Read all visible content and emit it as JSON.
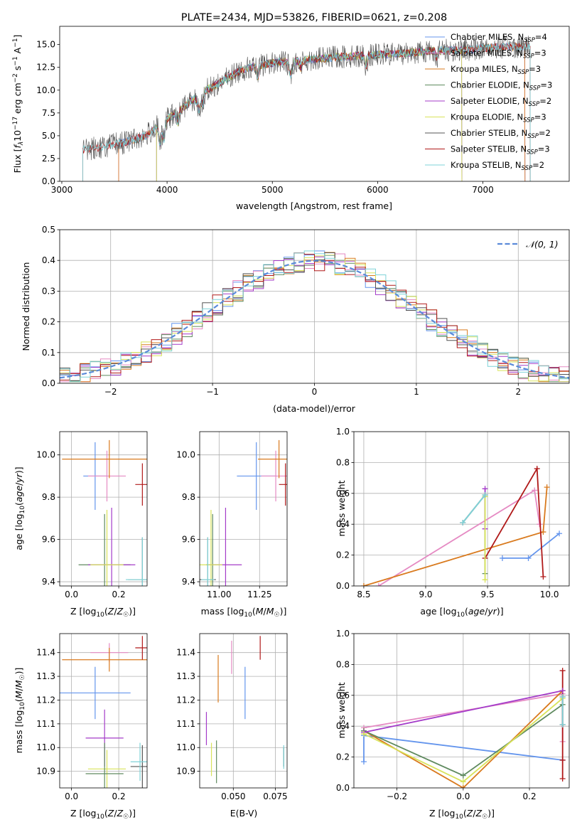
{
  "chart_data": [
    {
      "id": "spectrum",
      "type": "line",
      "title": "PLATE=2434, MJD=53826, FIBERID=0621, z=0.208",
      "xlabel": "wavelength [Angstrom, rest frame]",
      "ylabel": "Flux [fλ10⁻¹⁷ erg cm⁻² s⁻¹ A⁻¹]",
      "xlim": [
        2980,
        7820
      ],
      "ylim": [
        0,
        17
      ],
      "xticks": [
        3000,
        4000,
        5000,
        6000,
        7000
      ],
      "yticks": [
        0.0,
        2.5,
        5.0,
        7.5,
        10.0,
        12.5,
        15.0
      ],
      "grid": false,
      "legend_placement": "upper-right",
      "series": [
        {
          "name": "Chabrier MILES, N_SSP=4",
          "color": "#6495ED",
          "x_range": [
            3540,
            7400
          ]
        },
        {
          "name": "Salpeter MILES, N_SSP=3",
          "color": "#e58ac3",
          "x_range": [
            3540,
            7400
          ]
        },
        {
          "name": "Kroupa MILES, N_SSP=3",
          "color": "#d97a1e",
          "x_range": [
            3540,
            7400
          ]
        },
        {
          "name": "Chabrier ELODIE, N_SSP=3",
          "color": "#5f8a5f",
          "x_range": [
            3900,
            6800
          ]
        },
        {
          "name": "Salpeter ELODIE, N_SSP=2",
          "color": "#a43bc9",
          "x_range": [
            3900,
            6800
          ]
        },
        {
          "name": "Kroupa ELODIE, N_SSP=3",
          "color": "#d8e35a",
          "x_range": [
            3900,
            6800
          ]
        },
        {
          "name": "Chabrier STELIB, N_SSP=2",
          "color": "#555555",
          "x_range": [
            3200,
            7450
          ]
        },
        {
          "name": "Salpeter STELIB, N_SSP=3",
          "color": "#b01919",
          "x_range": [
            3200,
            7450
          ]
        },
        {
          "name": "Kroupa STELIB, N_SSP=2",
          "color": "#7fd3d8",
          "x_range": [
            3200,
            7450
          ]
        }
      ],
      "continuum": {
        "x": [
          3200,
          3400,
          3600,
          3800,
          3950,
          4100,
          4300,
          4500,
          4700,
          5000,
          5300,
          5600,
          5900,
          6200,
          6500,
          6800,
          7100,
          7400
        ],
        "y": [
          3.5,
          3.8,
          4.3,
          5.0,
          6.5,
          7.6,
          9.5,
          10.8,
          12.2,
          13.0,
          13.3,
          13.6,
          13.8,
          14.0,
          14.3,
          14.4,
          14.7,
          14.8
        ]
      },
      "legend_entries": [
        {
          "prefix": "Chabrier MILES, N",
          "sub": "SSP",
          "suffix": "=4"
        },
        {
          "prefix": "Salpeter MILES, N",
          "sub": "SSP",
          "suffix": "=3"
        },
        {
          "prefix": "Kroupa MILES, N",
          "sub": "SSP",
          "suffix": "=3"
        },
        {
          "prefix": "Chabrier ELODIE, N",
          "sub": "SSP",
          "suffix": "=3"
        },
        {
          "prefix": "Salpeter ELODIE, N",
          "sub": "SSP",
          "suffix": "=2"
        },
        {
          "prefix": "Kroupa ELODIE, N",
          "sub": "SSP",
          "suffix": "=3"
        },
        {
          "prefix": "Chabrier STELIB, N",
          "sub": "SSP",
          "suffix": "=2"
        },
        {
          "prefix": "Salpeter STELIB, N",
          "sub": "SSP",
          "suffix": "=3"
        },
        {
          "prefix": "Kroupa STELIB, N",
          "sub": "SSP",
          "suffix": "=2"
        }
      ]
    },
    {
      "id": "residuals",
      "type": "histogram",
      "xlabel": "(data-model)/error",
      "ylabel": "Normed distribution",
      "xlim": [
        -2.5,
        2.5
      ],
      "ylim": [
        0,
        0.5
      ],
      "xticks": [
        -2,
        -1,
        0,
        1,
        2
      ],
      "xtick_labels": [
        "−2",
        "−1",
        "0",
        "1",
        "2"
      ],
      "yticks": [
        0.0,
        0.1,
        0.2,
        0.3,
        0.4,
        0.5
      ],
      "grid": true,
      "legend_placement": "upper-right",
      "reference": {
        "name": "N(0,1)",
        "label": "𝒩(0, 1)",
        "color": "#5b8bd9",
        "style": "dashed"
      },
      "bin_edges_range": [
        -2.5,
        2.5
      ],
      "bin_count": 50
    },
    {
      "id": "age-vs-Z",
      "type": "errorbar",
      "xlabel": "Z [log₁₀(Z/Z☉)]",
      "ylabel": "age  [log₁₀(age/yr)]",
      "xlim": [
        -0.05,
        0.32
      ],
      "ylim": [
        9.38,
        10.11
      ],
      "xticks": [
        0.0,
        0.2
      ],
      "yticks": [
        9.4,
        9.6,
        9.8,
        10.0
      ],
      "grid": true,
      "points": [
        {
          "color": "#6495ED",
          "x": 0.1,
          "xerr": 0.05,
          "y": 9.9,
          "yerr": 0.16
        },
        {
          "color": "#e58ac3",
          "x": 0.15,
          "xerr": 0.08,
          "y": 9.9,
          "yerr": 0.12
        },
        {
          "color": "#d97a1e",
          "x": 0.16,
          "xerr": 0.2,
          "y": 9.98,
          "yerr": 0.09
        },
        {
          "color": "#b01919",
          "x": 0.3,
          "xerr": 0.03,
          "y": 9.86,
          "yerr": 0.1
        },
        {
          "color": "#5f8a5f",
          "x": 0.14,
          "xerr": 0.11,
          "y": 9.48,
          "yerr": 0.24
        },
        {
          "color": "#a43bc9",
          "x": 0.17,
          "xerr": 0.1,
          "y": 9.48,
          "yerr": 0.27
        },
        {
          "color": "#d8e35a",
          "x": 0.15,
          "xerr": 0.07,
          "y": 9.48,
          "yerr": 0.26
        },
        {
          "color": "#555555",
          "x": 0.3,
          "xerr": 0.06,
          "y": 9.41,
          "yerr": 0.2
        },
        {
          "color": "#7fd3d8",
          "x": 0.3,
          "xerr": 0.07,
          "y": 9.41,
          "yerr": 0.2
        }
      ]
    },
    {
      "id": "age-vs-mass",
      "type": "errorbar",
      "xlabel": "mass [log₁₀(M/M☉)]",
      "xlim": [
        10.88,
        11.42
      ],
      "ylim": [
        9.38,
        10.11
      ],
      "xticks": [
        11.0,
        11.25
      ],
      "yticks": [
        9.4,
        9.6,
        9.8,
        10.0
      ],
      "grid": true,
      "points": [
        {
          "color": "#6495ED",
          "x": 11.23,
          "xerr": 0.12,
          "y": 9.9,
          "yerr": 0.16
        },
        {
          "color": "#e58ac3",
          "x": 11.35,
          "xerr": 0.09,
          "y": 9.9,
          "yerr": 0.12
        },
        {
          "color": "#d97a1e",
          "x": 11.37,
          "xerr": 0.13,
          "y": 9.98,
          "yerr": 0.09
        },
        {
          "color": "#b01919",
          "x": 11.41,
          "xerr": 0.04,
          "y": 9.86,
          "yerr": 0.1
        },
        {
          "color": "#5f8a5f",
          "x": 10.96,
          "xerr": 0.04,
          "y": 9.48,
          "yerr": 0.24
        },
        {
          "color": "#a43bc9",
          "x": 11.04,
          "xerr": 0.1,
          "y": 9.48,
          "yerr": 0.27
        },
        {
          "color": "#d8e35a",
          "x": 10.95,
          "xerr": 0.07,
          "y": 9.48,
          "yerr": 0.26
        },
        {
          "color": "#555555",
          "x": 10.93,
          "xerr": 0.05,
          "y": 9.41,
          "yerr": 0.2
        },
        {
          "color": "#7fd3d8",
          "x": 10.93,
          "xerr": 0.04,
          "y": 9.41,
          "yerr": 0.2
        }
      ]
    },
    {
      "id": "mass-weight-vs-age",
      "type": "line",
      "xlabel": "age  [log₁₀(age/yr)]",
      "ylabel": "mass weight",
      "xlim": [
        8.42,
        10.16
      ],
      "ylim": [
        0,
        1.0
      ],
      "xticks": [
        8.5,
        9.0,
        9.5,
        10.0
      ],
      "yticks": [
        0.0,
        0.2,
        0.4,
        0.6,
        0.8,
        1.0
      ],
      "grid": true,
      "series": [
        {
          "color": "#6495ED",
          "x": [
            10.08,
            9.83,
            9.62
          ],
          "y": [
            0.34,
            0.18,
            0.18
          ]
        },
        {
          "color": "#e58ac3",
          "x": [
            8.62,
            9.88,
            9.92
          ],
          "y": [
            0.0,
            0.62,
            0.4
          ]
        },
        {
          "color": "#d97a1e",
          "x": [
            8.5,
            9.95,
            9.98
          ],
          "y": [
            0.0,
            0.35,
            0.64
          ]
        },
        {
          "color": "#b01919",
          "x": [
            9.48,
            9.9,
            9.95
          ],
          "y": [
            0.18,
            0.76,
            0.06
          ]
        },
        {
          "color": "#5f8a5f",
          "x": [
            9.48,
            9.48
          ],
          "y": [
            0.08,
            0.58
          ]
        },
        {
          "color": "#a43bc9",
          "x": [
            9.48,
            9.48
          ],
          "y": [
            0.37,
            0.63
          ]
        },
        {
          "color": "#d8e35a",
          "x": [
            9.48,
            9.48
          ],
          "y": [
            0.04,
            0.58
          ]
        },
        {
          "color": "#555555",
          "x": [
            9.3,
            9.48
          ],
          "y": [
            0.41,
            0.59
          ]
        },
        {
          "color": "#7fd3d8",
          "x": [
            9.3,
            9.48
          ],
          "y": [
            0.41,
            0.59
          ]
        }
      ]
    },
    {
      "id": "mass-vs-Z",
      "type": "errorbar",
      "xlabel": "Z [log₁₀(Z/Z☉)]",
      "ylabel": "mass [log₁₀(M/M☉)]",
      "xlim": [
        -0.05,
        0.32
      ],
      "ylim": [
        10.83,
        11.48
      ],
      "xticks": [
        0.0,
        0.2
      ],
      "yticks": [
        10.9,
        11.0,
        11.1,
        11.2,
        11.3,
        11.4
      ],
      "grid": true,
      "points": [
        {
          "color": "#e58ac3",
          "x": 0.16,
          "xerr": 0.08,
          "y": 11.4,
          "yerr": 0.04
        },
        {
          "color": "#d97a1e",
          "x": 0.16,
          "xerr": 0.2,
          "y": 11.37,
          "yerr": 0.05
        },
        {
          "color": "#b01919",
          "x": 0.3,
          "xerr": 0.03,
          "y": 11.42,
          "yerr": 0.05
        },
        {
          "color": "#6495ED",
          "x": 0.1,
          "xerr": 0.15,
          "y": 11.23,
          "yerr": 0.11
        },
        {
          "color": "#a43bc9",
          "x": 0.14,
          "xerr": 0.08,
          "y": 11.04,
          "yerr": 0.12
        },
        {
          "color": "#d8e35a",
          "x": 0.15,
          "xerr": 0.08,
          "y": 10.91,
          "yerr": 0.08
        },
        {
          "color": "#5f8a5f",
          "x": 0.14,
          "xerr": 0.08,
          "y": 10.89,
          "yerr": 0.13
        },
        {
          "color": "#555555",
          "x": 0.3,
          "xerr": 0.05,
          "y": 10.92,
          "yerr": 0.09
        },
        {
          "color": "#7fd3d8",
          "x": 0.29,
          "xerr": 0.04,
          "y": 10.94,
          "yerr": 0.08
        }
      ]
    },
    {
      "id": "mass-vs-ebv",
      "type": "errorbar",
      "xlabel": "E(B-V)",
      "xlim": [
        0.03,
        0.082
      ],
      "ylim": [
        10.83,
        11.48
      ],
      "xticks": [
        0.05,
        0.075
      ],
      "yticks": [
        10.9,
        11.0,
        11.1,
        11.2,
        11.3,
        11.4
      ],
      "grid": true,
      "points": [
        {
          "color": "#e58ac3",
          "x": 0.049,
          "y": 11.38,
          "yerr": 0.07
        },
        {
          "color": "#d97a1e",
          "x": 0.041,
          "y": 11.29,
          "yerr": 0.1
        },
        {
          "color": "#b01919",
          "x": 0.066,
          "y": 11.42,
          "yerr": 0.05
        },
        {
          "color": "#6495ED",
          "x": 0.057,
          "y": 11.23,
          "yerr": 0.11
        },
        {
          "color": "#a43bc9",
          "x": 0.034,
          "y": 11.08,
          "yerr": 0.07
        },
        {
          "color": "#d8e35a",
          "x": 0.037,
          "y": 10.95,
          "yerr": 0.07
        },
        {
          "color": "#5f8a5f",
          "x": 0.04,
          "y": 10.94,
          "yerr": 0.09
        },
        {
          "color": "#555555",
          "x": 0.08,
          "y": 10.96,
          "yerr": 0.04
        },
        {
          "color": "#7fd3d8",
          "x": 0.08,
          "y": 10.96,
          "yerr": 0.05
        }
      ]
    },
    {
      "id": "mass-weight-vs-Z",
      "type": "line",
      "xlabel": "Z [log₁₀(Z/Z☉)]",
      "ylabel": "mass weight",
      "xlim": [
        -0.33,
        0.32
      ],
      "ylim": [
        0,
        1.0
      ],
      "xticks": [
        -0.2,
        0.0,
        0.2
      ],
      "xtick_labels": [
        "−0.2",
        "0.0",
        "0.2"
      ],
      "yticks": [
        0.0,
        0.2,
        0.4,
        0.6,
        0.8,
        1.0
      ],
      "grid": true,
      "series": [
        {
          "color": "#6495ED",
          "x": [
            -0.3,
            -0.3,
            0.3
          ],
          "y": [
            0.17,
            0.34,
            0.18
          ]
        },
        {
          "color": "#e58ac3",
          "x": [
            -0.3,
            0.3,
            0.3
          ],
          "y": [
            0.39,
            0.61,
            0.3
          ]
        },
        {
          "color": "#d97a1e",
          "x": [
            -0.3,
            0.0,
            0.3
          ],
          "y": [
            0.37,
            0.0,
            0.63
          ]
        },
        {
          "color": "#b01919",
          "x": [
            0.3,
            0.3,
            0.3
          ],
          "y": [
            0.06,
            0.18,
            0.76
          ]
        },
        {
          "color": "#5f8a5f",
          "x": [
            -0.3,
            0.0,
            0.3
          ],
          "y": [
            0.37,
            0.08,
            0.54
          ]
        },
        {
          "color": "#a43bc9",
          "x": [
            -0.3,
            0.3
          ],
          "y": [
            0.36,
            0.63
          ]
        },
        {
          "color": "#d8e35a",
          "x": [
            -0.3,
            0.0,
            0.3
          ],
          "y": [
            0.35,
            0.04,
            0.58
          ]
        },
        {
          "color": "#555555",
          "x": [
            0.3,
            0.3
          ],
          "y": [
            0.41,
            0.59
          ]
        },
        {
          "color": "#7fd3d8",
          "x": [
            0.3,
            0.3
          ],
          "y": [
            0.41,
            0.59
          ]
        }
      ]
    }
  ]
}
